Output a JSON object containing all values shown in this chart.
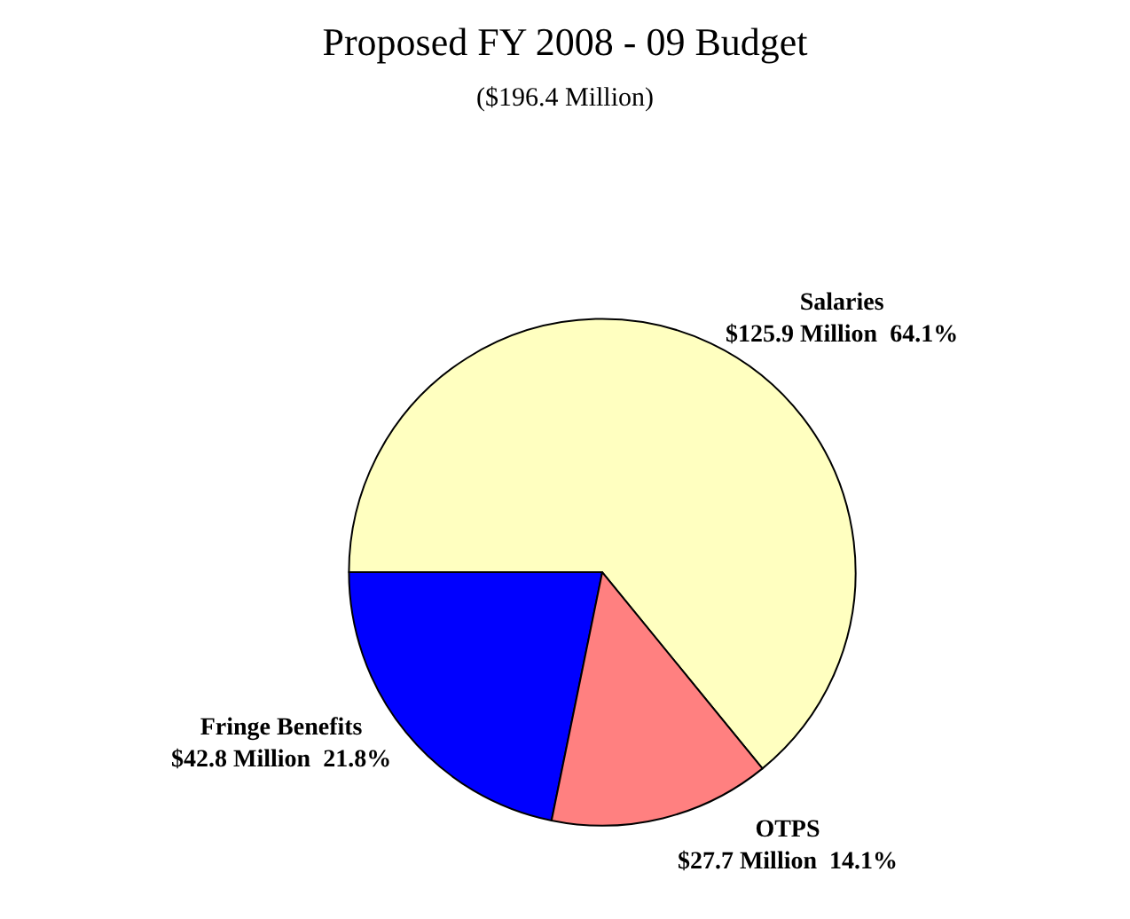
{
  "chart_data": {
    "type": "pie",
    "title": "Proposed FY 2008 - 09 Budget",
    "subtitle": "($196.4 Million)",
    "categories": [
      "Salaries",
      "Fringe Benefits",
      "OTPS"
    ],
    "values": [
      125.9,
      42.8,
      27.7
    ],
    "value_labels": [
      "$125.9 Million  64.1%",
      "$42.8 Million  21.8%",
      "$27.7 Million  14.1%"
    ],
    "colors": [
      "#ffffc0",
      "#0000ff",
      "#ff8080"
    ],
    "legend": false
  }
}
